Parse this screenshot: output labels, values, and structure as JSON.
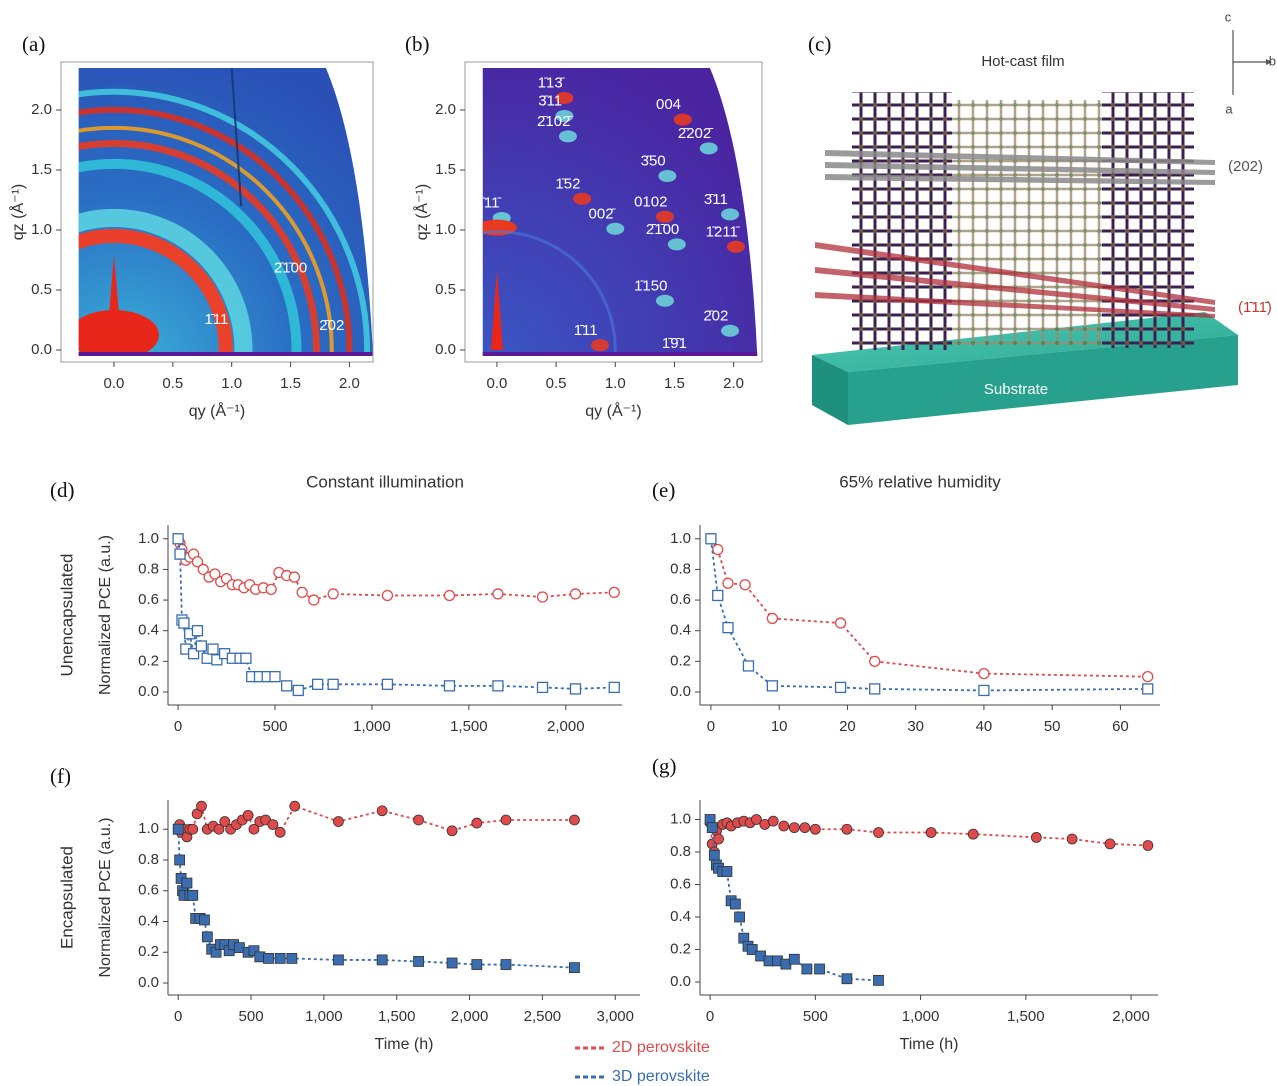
{
  "panel_labels": [
    "(a)",
    "(b)",
    "(c)",
    "(d)",
    "(e)",
    "(f)",
    "(g)"
  ],
  "structure": {
    "title": "Hot-cast film",
    "plane_1": "(202)",
    "plane_2": "(1̄11̄)",
    "substrate": "Substrate",
    "axis_c": "c",
    "axis_b": "b",
    "axis_a": "a"
  },
  "chart_data": [
    {
      "type": "image",
      "xlabel": "qy (Å⁻¹)",
      "ylabel": "qz (Å⁻¹)",
      "xlim": [
        -0.45,
        2.2
      ],
      "ylim": [
        -0.1,
        2.4
      ],
      "xticks": [
        {
          "value": 0,
          "label": "0.0"
        },
        0.5,
        {
          "value": 1,
          "label": "1.0"
        },
        1.5,
        {
          "value": 2,
          "label": "2.0"
        }
      ],
      "yticks": [
        {
          "value": 0,
          "label": "0.0"
        },
        0.5,
        {
          "value": 1,
          "label": "1.0"
        },
        1.5,
        {
          "value": 2,
          "label": "2.0"
        }
      ],
      "annotations": [
        "2̄1̄00",
        "1̄11",
        "2̄02"
      ]
    },
    {
      "type": "image",
      "xlabel": "qy (Å⁻¹)",
      "ylabel": "qz (Å⁻¹)",
      "xlim": [
        -0.27,
        2.24
      ],
      "ylim": [
        -0.1,
        2.4
      ],
      "xticks": [
        {
          "value": 0,
          "label": "0.0"
        },
        0.5,
        {
          "value": 1,
          "label": "1.0"
        },
        1.5,
        {
          "value": 2,
          "label": "2.0"
        }
      ],
      "yticks": [
        {
          "value": 0,
          "label": "0.0"
        },
        0.5,
        {
          "value": 1,
          "label": "1.0"
        },
        1.5,
        {
          "value": 2,
          "label": "2.0"
        }
      ],
      "annotations": [
        "1̄13̄",
        "3̄11",
        "2̄102̄",
        "004",
        "2̄202̄",
        "3̄50",
        "1̄52",
        "1̄11̄",
        "002̄",
        "0102",
        "3̄11",
        "2̄1̄00",
        "1̄211̄",
        "1̄150",
        "2̄02",
        "1̄11",
        "1̄9̄1"
      ]
    },
    {
      "type": "line",
      "title": "Constant illumination",
      "row_label": "Unencapsulated",
      "ylabel": "Normalized PCE (a.u.)",
      "filled": false,
      "xlim": [
        -52,
        2290
      ],
      "ylim": [
        -0.085,
        1.09
      ],
      "xticks": [
        0,
        500,
        {
          "value": 1000,
          "label": "1,000"
        },
        {
          "value": 1500,
          "label": "1,500"
        },
        {
          "value": 2000,
          "label": "2,000"
        }
      ],
      "yticks": [
        {
          "value": 0,
          "label": "0.0"
        },
        0.2,
        0.4,
        0.6,
        0.8,
        {
          "value": 1,
          "label": "1.0"
        }
      ],
      "series": [
        {
          "name": "2D perovskite",
          "color": "#e04a4a",
          "marker": "circle",
          "x": [
            0,
            10,
            20,
            40,
            60,
            80,
            100,
            130,
            160,
            190,
            220,
            250,
            280,
            310,
            340,
            370,
            400,
            440,
            480,
            520,
            560,
            600,
            640,
            700,
            800,
            1080,
            1400,
            1650,
            1880,
            2050,
            2250
          ],
          "values": [
            1.0,
            0.97,
            0.93,
            0.86,
            0.88,
            0.9,
            0.85,
            0.8,
            0.75,
            0.77,
            0.72,
            0.74,
            0.7,
            0.7,
            0.68,
            0.7,
            0.67,
            0.68,
            0.67,
            0.78,
            0.76,
            0.75,
            0.65,
            0.6,
            0.64,
            0.63,
            0.63,
            0.64,
            0.62,
            0.64,
            0.65
          ]
        },
        {
          "name": "3D perovskite",
          "color": "#3a6db0",
          "marker": "square",
          "x": [
            0,
            10,
            20,
            30,
            40,
            60,
            80,
            100,
            120,
            150,
            180,
            200,
            240,
            280,
            320,
            350,
            380,
            420,
            460,
            500,
            560,
            620,
            720,
            800,
            1080,
            1400,
            1650,
            1880,
            2050,
            2250
          ],
          "values": [
            1.0,
            0.9,
            0.47,
            0.45,
            0.28,
            0.38,
            0.25,
            0.4,
            0.3,
            0.22,
            0.28,
            0.21,
            0.25,
            0.22,
            0.22,
            0.22,
            0.1,
            0.1,
            0.1,
            0.1,
            0.04,
            0.01,
            0.05,
            0.05,
            0.05,
            0.04,
            0.04,
            0.03,
            0.02,
            0.03
          ]
        }
      ]
    },
    {
      "type": "line",
      "title": "65% relative humidity",
      "filled": false,
      "xlim": [
        -1.6,
        65.8
      ],
      "ylim": [
        -0.085,
        1.09
      ],
      "xticks": [
        0,
        10,
        20,
        30,
        40,
        50,
        60
      ],
      "yticks": [
        {
          "value": 0,
          "label": "0.0"
        },
        0.2,
        0.4,
        0.6,
        0.8,
        {
          "value": 1,
          "label": "1.0"
        }
      ],
      "series": [
        {
          "name": "2D perovskite",
          "color": "#e04a4a",
          "marker": "circle",
          "x": [
            0,
            1,
            2.5,
            5,
            9,
            19,
            24,
            40,
            64
          ],
          "values": [
            1.0,
            0.93,
            0.71,
            0.7,
            0.48,
            0.45,
            0.2,
            0.12,
            0.1
          ]
        },
        {
          "name": "3D perovskite",
          "color": "#3a6db0",
          "marker": "square",
          "x": [
            0,
            1,
            2.5,
            5.5,
            9,
            19,
            24,
            40,
            64
          ],
          "values": [
            1.0,
            0.63,
            0.42,
            0.17,
            0.04,
            0.03,
            0.02,
            0.01,
            0.02
          ]
        }
      ]
    },
    {
      "type": "line",
      "row_label": "Encapsulated",
      "ylabel": "Normalized PCE (a.u.)",
      "xlabel": "Time (h)",
      "filled": true,
      "legend": true,
      "xlim": [
        -70,
        3170
      ],
      "ylim": [
        -0.078,
        1.19
      ],
      "xticks": [
        0,
        500,
        {
          "value": 1000,
          "label": "1,000"
        },
        {
          "value": 1500,
          "label": "1,500"
        },
        {
          "value": 2000,
          "label": "2,000"
        },
        {
          "value": 2500,
          "label": "2,500"
        },
        {
          "value": 3000,
          "label": "3,000"
        }
      ],
      "yticks": [
        {
          "value": 0,
          "label": "0.0"
        },
        0.2,
        0.4,
        0.6,
        0.8,
        {
          "value": 1,
          "label": "1.0"
        }
      ],
      "series": [
        {
          "name": "2D perovskite",
          "color": "#e04a4a",
          "marker": "circle",
          "x": [
            0,
            10,
            20,
            40,
            60,
            80,
            100,
            130,
            160,
            200,
            240,
            280,
            320,
            360,
            400,
            440,
            480,
            520,
            560,
            600,
            650,
            700,
            800,
            1100,
            1400,
            1650,
            1880,
            2050,
            2250,
            2720
          ],
          "values": [
            1.0,
            1.03,
            0.98,
            1.0,
            0.95,
            1.0,
            1.0,
            1.1,
            1.15,
            1.0,
            1.02,
            1.0,
            1.05,
            1.0,
            1.03,
            1.06,
            1.09,
            1.0,
            1.05,
            1.06,
            1.03,
            0.98,
            1.15,
            1.05,
            1.12,
            1.06,
            0.99,
            1.04,
            1.06,
            1.06
          ]
        },
        {
          "name": "3D perovskite",
          "color": "#3a6db0",
          "marker": "square",
          "x": [
            0,
            10,
            20,
            30,
            40,
            60,
            80,
            100,
            120,
            150,
            180,
            200,
            230,
            260,
            290,
            320,
            350,
            380,
            420,
            480,
            520,
            560,
            620,
            700,
            780,
            1100,
            1400,
            1650,
            1880,
            2050,
            2250,
            2720
          ],
          "values": [
            1.0,
            0.8,
            0.68,
            0.6,
            0.57,
            0.65,
            0.57,
            0.57,
            0.42,
            0.42,
            0.41,
            0.3,
            0.22,
            0.2,
            0.25,
            0.25,
            0.21,
            0.25,
            0.23,
            0.2,
            0.21,
            0.17,
            0.16,
            0.16,
            0.16,
            0.15,
            0.15,
            0.14,
            0.13,
            0.12,
            0.12,
            0.1
          ]
        }
      ]
    },
    {
      "type": "line",
      "xlabel": "Time (h)",
      "filled": true,
      "xlim": [
        -48,
        2128
      ],
      "ylim": [
        -0.08,
        1.12
      ],
      "xticks": [
        0,
        500,
        {
          "value": 1000,
          "label": "1,000"
        },
        {
          "value": 1500,
          "label": "1,500"
        },
        {
          "value": 2000,
          "label": "2,000"
        }
      ],
      "yticks": [
        {
          "value": 0,
          "label": "0.0"
        },
        0.2,
        0.4,
        0.6,
        0.8,
        {
          "value": 1,
          "label": "1.0"
        }
      ],
      "series": [
        {
          "name": "2D perovskite",
          "color": "#e04a4a",
          "marker": "circle",
          "x": [
            0,
            10,
            20,
            30,
            40,
            60,
            80,
            100,
            130,
            160,
            190,
            220,
            260,
            300,
            350,
            400,
            450,
            500,
            650,
            800,
            1050,
            1250,
            1550,
            1720,
            1900,
            2080
          ],
          "values": [
            0.98,
            0.85,
            0.8,
            0.93,
            0.88,
            0.97,
            0.98,
            0.96,
            0.98,
            0.99,
            0.98,
            1.0,
            0.97,
            0.99,
            0.96,
            0.95,
            0.95,
            0.94,
            0.94,
            0.92,
            0.92,
            0.91,
            0.89,
            0.88,
            0.85,
            0.84
          ]
        },
        {
          "name": "3D perovskite",
          "color": "#3a6db0",
          "marker": "square",
          "x": [
            0,
            10,
            20,
            30,
            40,
            60,
            80,
            100,
            120,
            140,
            160,
            180,
            200,
            240,
            280,
            320,
            360,
            400,
            460,
            520,
            650,
            800
          ],
          "values": [
            1.0,
            0.95,
            0.78,
            0.72,
            0.7,
            0.68,
            0.68,
            0.5,
            0.48,
            0.4,
            0.27,
            0.22,
            0.2,
            0.16,
            0.13,
            0.13,
            0.11,
            0.14,
            0.08,
            0.08,
            0.02,
            0.01
          ]
        }
      ]
    }
  ]
}
